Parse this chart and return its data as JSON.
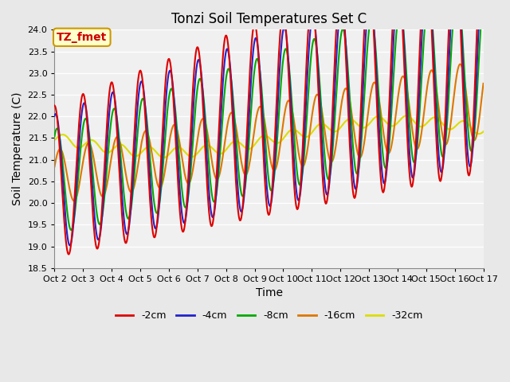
{
  "title": "Tonzi Soil Temperatures Set C",
  "xlabel": "Time",
  "ylabel": "Soil Temperature (C)",
  "annotation": "TZ_fmet",
  "annotation_color": "#cc0000",
  "annotation_bg": "#ffffcc",
  "annotation_border": "#cc9900",
  "ylim": [
    18.5,
    24.0
  ],
  "yticks": [
    18.5,
    19.0,
    19.5,
    20.0,
    20.5,
    21.0,
    21.5,
    22.0,
    22.5,
    23.0,
    23.5,
    24.0
  ],
  "xtick_labels": [
    "Oct 2",
    "Oct 3",
    "Oct 4",
    "Oct 5",
    "Oct 6",
    "Oct 7",
    "Oct 8",
    "Oct 9",
    "Oct 10",
    "Oct 11",
    "Oct 12",
    "Oct 13",
    "Oct 14",
    "Oct 15",
    "Oct 16",
    "Oct 17"
  ],
  "series_colors": {
    "-2cm": "#dd0000",
    "-4cm": "#2222cc",
    "-8cm": "#00aa00",
    "-16cm": "#dd7700",
    "-32cm": "#dddd00"
  },
  "series_linewidth": 1.5,
  "bg_color": "#e8e8e8",
  "plot_bg_color": "#f0f0f0",
  "grid_color": "#ffffff",
  "title_fontsize": 12,
  "axis_label_fontsize": 10,
  "tick_fontsize": 8,
  "legend_fontsize": 9
}
